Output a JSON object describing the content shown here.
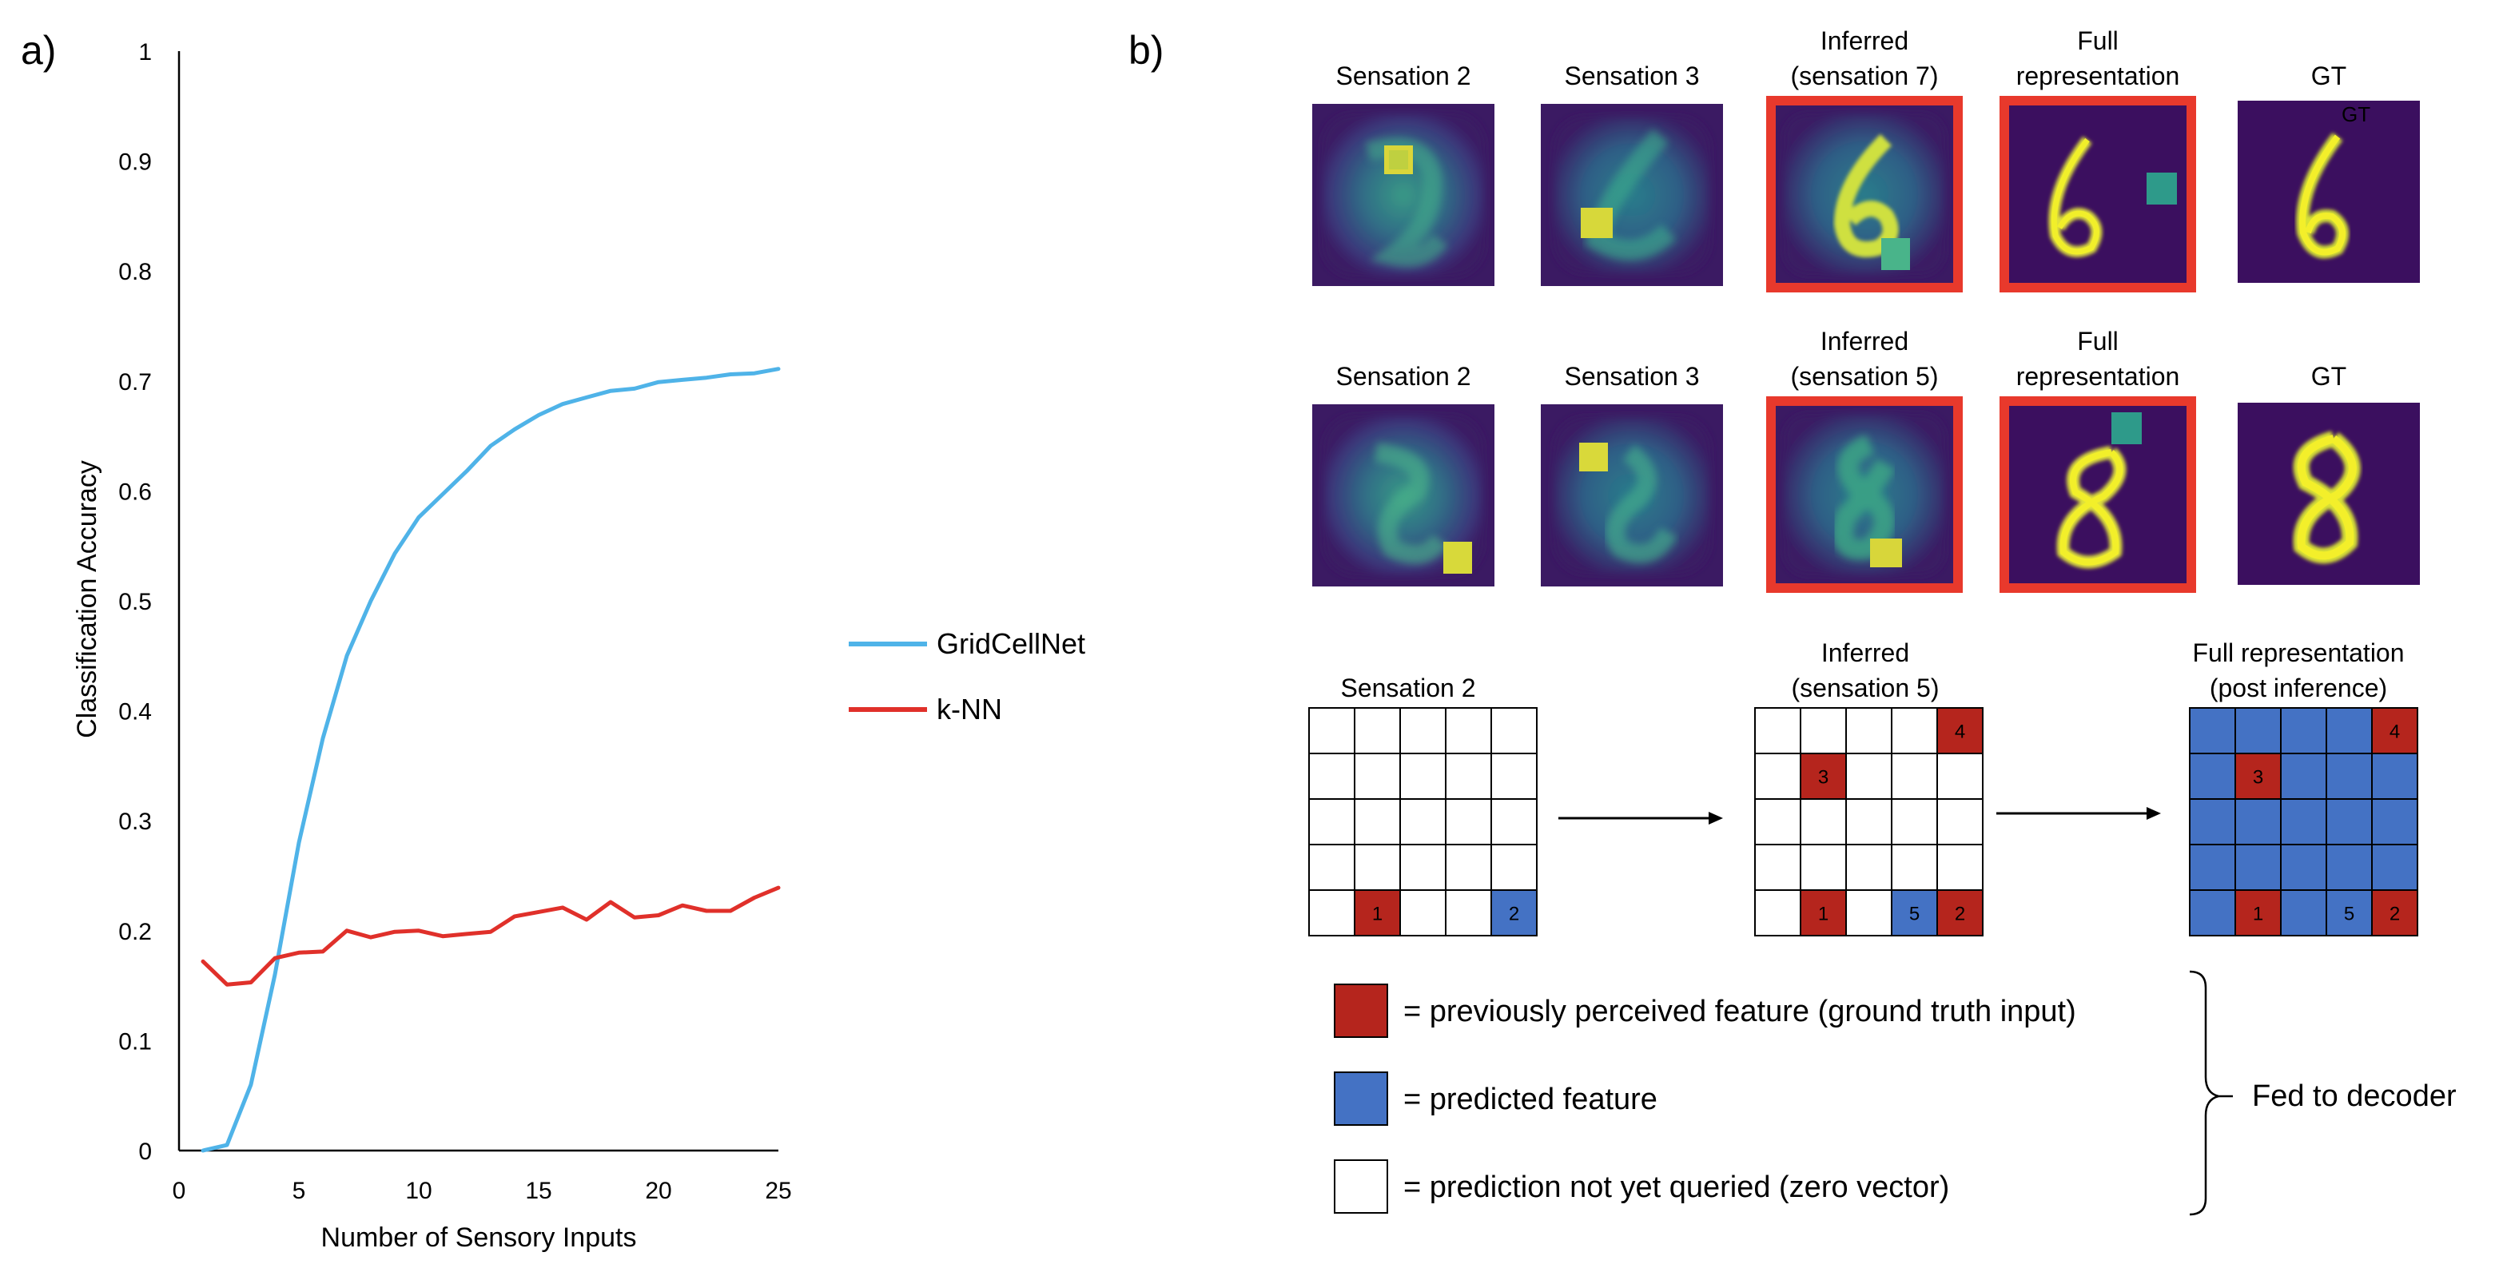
{
  "panel_a": {
    "label": "a)",
    "chart_data": {
      "type": "line",
      "xlabel": "Number of Sensory Inputs",
      "ylabel": "Classification Accuracy",
      "xlim": [
        0,
        25
      ],
      "ylim": [
        0,
        1
      ],
      "x_ticks": [
        0,
        5,
        10,
        15,
        20,
        25
      ],
      "y_ticks": [
        0,
        0.1,
        0.2,
        0.3,
        0.4,
        0.5,
        0.6,
        0.7,
        0.8,
        0.9,
        1
      ],
      "y_tick_labels": [
        "0",
        "0.1",
        "0.2",
        "0.3",
        "0.4",
        "0.5",
        "0.6",
        "0.7",
        "0.8",
        "0.9",
        "1"
      ],
      "grid": false,
      "legend_position": "right",
      "x": [
        1,
        2,
        3,
        4,
        5,
        6,
        7,
        8,
        9,
        10,
        11,
        12,
        13,
        14,
        15,
        16,
        17,
        18,
        19,
        20,
        21,
        22,
        23,
        24,
        25
      ],
      "series": [
        {
          "name": "GridCellNet",
          "color": "#4fb3e8",
          "values": [
            0.0,
            0.005,
            0.06,
            0.16,
            0.28,
            0.375,
            0.45,
            0.5,
            0.543,
            0.576,
            0.597,
            0.618,
            0.641,
            0.656,
            0.669,
            0.679,
            0.685,
            0.691,
            0.693,
            0.699,
            0.701,
            0.703,
            0.706,
            0.707,
            0.711
          ]
        },
        {
          "name": "k-NN",
          "color": "#e0302a",
          "values": [
            0.172,
            0.151,
            0.153,
            0.175,
            0.18,
            0.181,
            0.2,
            0.194,
            0.199,
            0.2,
            0.195,
            0.197,
            0.199,
            0.213,
            0.217,
            0.221,
            0.21,
            0.226,
            0.212,
            0.214,
            0.223,
            0.218,
            0.218,
            0.23,
            0.239
          ]
        }
      ]
    }
  },
  "panel_b": {
    "label": "b)",
    "row1": {
      "titles": [
        [
          "Sensation 2"
        ],
        [
          "Sensation 3"
        ],
        [
          "Inferred",
          "(sensation 7)"
        ],
        [
          "Full",
          "representation"
        ],
        [
          "GT"
        ]
      ],
      "extra_label": "GT",
      "digit": "6"
    },
    "row2": {
      "titles": [
        [
          "Sensation 2"
        ],
        [
          "Sensation 3"
        ],
        [
          "Inferred",
          "(sensation 5)"
        ],
        [
          "Full",
          "representation"
        ],
        [
          "GT"
        ]
      ],
      "digit": "8"
    },
    "grids": {
      "titles": [
        [
          "Sensation 2"
        ],
        [
          "Inferred",
          "(sensation 5)"
        ],
        [
          "Full representation",
          "(post inference)"
        ]
      ],
      "grid1": [
        {
          "row": 4,
          "col": 1,
          "state": "perceived",
          "label": "1"
        },
        {
          "row": 4,
          "col": 4,
          "state": "predicted",
          "label": "2"
        }
      ],
      "grid2": [
        {
          "row": 0,
          "col": 4,
          "state": "perceived",
          "label": "4"
        },
        {
          "row": 1,
          "col": 1,
          "state": "perceived",
          "label": "3"
        },
        {
          "row": 4,
          "col": 1,
          "state": "perceived",
          "label": "1"
        },
        {
          "row": 4,
          "col": 3,
          "state": "predicted",
          "label": "5"
        },
        {
          "row": 4,
          "col": 4,
          "state": "perceived",
          "label": "2"
        }
      ],
      "grid3": [
        {
          "row": 0,
          "col": 4,
          "state": "perceived",
          "label": "4"
        },
        {
          "row": 1,
          "col": 1,
          "state": "perceived",
          "label": "3"
        },
        {
          "row": 4,
          "col": 1,
          "state": "perceived",
          "label": "1"
        },
        {
          "row": 4,
          "col": 3,
          "state": "predicted",
          "label": "5"
        },
        {
          "row": 4,
          "col": 4,
          "state": "perceived",
          "label": "2"
        }
      ]
    },
    "legend": {
      "items": [
        {
          "text": "= previously perceived feature (ground truth input)",
          "color": "#b5251d"
        },
        {
          "text": "= predicted feature",
          "color": "#4472c4"
        },
        {
          "text": "= prediction not yet queried (zero vector)",
          "color": "#ffffff"
        }
      ],
      "brace_label": "Fed to decoder"
    },
    "colors": {
      "perceived": "#b5251d",
      "predicted": "#4472c4",
      "frame": "#e8392c",
      "viridis_bg": "#3b0f5f",
      "viridis_mid": "#2e8c8a",
      "viridis_hi": "#e8e61f"
    }
  }
}
